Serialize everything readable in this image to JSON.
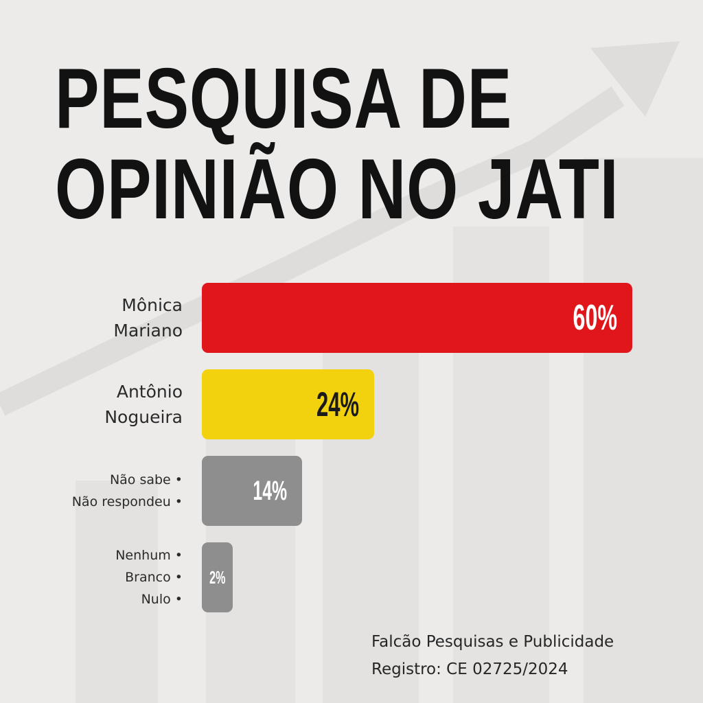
{
  "title": {
    "line1": "PESQUISA DE",
    "line2": "OPINIÃO NO JATI"
  },
  "colors": {
    "background": "#ecebea",
    "monica": "#e0161b",
    "antonio": "#f2d20f",
    "undecided": "#8e8e8e",
    "none": "#8e8e8e"
  },
  "chart_data": {
    "type": "bar",
    "orientation": "horizontal",
    "unit": "%",
    "xlim": [
      0,
      60
    ],
    "categories": [
      [
        "Mônica",
        "Mariano"
      ],
      [
        "Antônio",
        "Nogueira"
      ],
      [
        "Não sabe",
        "Não respondeu"
      ],
      [
        "Nenhum",
        "Branco",
        "Nulo"
      ]
    ],
    "values": [
      60,
      24,
      14,
      2
    ],
    "value_labels": [
      "60%",
      "24%",
      "14%",
      "2%"
    ],
    "bar_colors": [
      "#e0161b",
      "#f2d20f",
      "#8e8e8e",
      "#8e8e8e"
    ],
    "label_colors": [
      "#ffffff",
      "#1a1a1a",
      "#ffffff",
      "#ffffff"
    ]
  },
  "footer": {
    "source": "Falcão Pesquisas e Publicidade",
    "registration": "Registro: CE 02725/2024"
  }
}
